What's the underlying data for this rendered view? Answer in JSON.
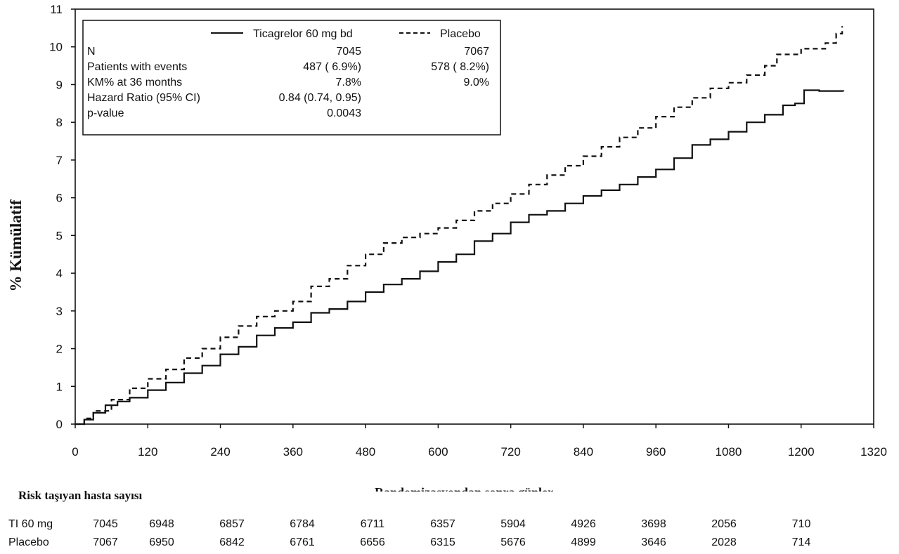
{
  "chart_data": {
    "type": "line",
    "ylabel": "% Kümülatif",
    "xlabel": "Randomizasyondan sonra günler",
    "xlim": [
      0,
      1320
    ],
    "ylim": [
      0,
      11
    ],
    "xticks": [
      0,
      120,
      240,
      360,
      480,
      600,
      720,
      840,
      960,
      1080,
      1200,
      1320
    ],
    "yticks": [
      0,
      1,
      2,
      3,
      4,
      5,
      6,
      7,
      8,
      9,
      10,
      11
    ],
    "grid": false,
    "legend_position": "top-left",
    "series": [
      {
        "name": "Ticagrelor 60 mg bd",
        "style": "solid",
        "color": "#111111",
        "points": [
          [
            0,
            0
          ],
          [
            15,
            0.12
          ],
          [
            30,
            0.3
          ],
          [
            50,
            0.5
          ],
          [
            70,
            0.6
          ],
          [
            90,
            0.7
          ],
          [
            120,
            0.9
          ],
          [
            150,
            1.1
          ],
          [
            180,
            1.35
          ],
          [
            210,
            1.55
          ],
          [
            240,
            1.85
          ],
          [
            270,
            2.05
          ],
          [
            300,
            2.35
          ],
          [
            330,
            2.55
          ],
          [
            360,
            2.7
          ],
          [
            390,
            2.95
          ],
          [
            420,
            3.05
          ],
          [
            450,
            3.25
          ],
          [
            480,
            3.5
          ],
          [
            510,
            3.7
          ],
          [
            540,
            3.85
          ],
          [
            570,
            4.05
          ],
          [
            600,
            4.3
          ],
          [
            630,
            4.5
          ],
          [
            660,
            4.85
          ],
          [
            690,
            5.05
          ],
          [
            720,
            5.35
          ],
          [
            750,
            5.55
          ],
          [
            780,
            5.65
          ],
          [
            810,
            5.85
          ],
          [
            840,
            6.05
          ],
          [
            870,
            6.2
          ],
          [
            900,
            6.35
          ],
          [
            930,
            6.55
          ],
          [
            960,
            6.75
          ],
          [
            990,
            7.05
          ],
          [
            1020,
            7.4
          ],
          [
            1050,
            7.55
          ],
          [
            1080,
            7.75
          ],
          [
            1110,
            8.0
          ],
          [
            1140,
            8.2
          ],
          [
            1170,
            8.45
          ],
          [
            1190,
            8.5
          ],
          [
            1205,
            8.85
          ],
          [
            1230,
            8.83
          ],
          [
            1270,
            8.82
          ]
        ]
      },
      {
        "name": "Placebo",
        "style": "dashed",
        "color": "#111111",
        "points": [
          [
            0,
            0
          ],
          [
            15,
            0.15
          ],
          [
            30,
            0.35
          ],
          [
            60,
            0.65
          ],
          [
            90,
            0.95
          ],
          [
            120,
            1.2
          ],
          [
            150,
            1.45
          ],
          [
            180,
            1.75
          ],
          [
            210,
            2.0
          ],
          [
            240,
            2.3
          ],
          [
            270,
            2.6
          ],
          [
            300,
            2.85
          ],
          [
            330,
            3.0
          ],
          [
            360,
            3.25
          ],
          [
            390,
            3.65
          ],
          [
            420,
            3.85
          ],
          [
            450,
            4.2
          ],
          [
            480,
            4.5
          ],
          [
            510,
            4.8
          ],
          [
            540,
            4.95
          ],
          [
            570,
            5.05
          ],
          [
            600,
            5.2
          ],
          [
            630,
            5.4
          ],
          [
            660,
            5.65
          ],
          [
            690,
            5.85
          ],
          [
            720,
            6.1
          ],
          [
            750,
            6.35
          ],
          [
            780,
            6.6
          ],
          [
            810,
            6.85
          ],
          [
            840,
            7.1
          ],
          [
            870,
            7.35
          ],
          [
            900,
            7.6
          ],
          [
            930,
            7.85
          ],
          [
            960,
            8.15
          ],
          [
            990,
            8.4
          ],
          [
            1020,
            8.65
          ],
          [
            1050,
            8.9
          ],
          [
            1080,
            9.05
          ],
          [
            1110,
            9.25
          ],
          [
            1140,
            9.5
          ],
          [
            1160,
            9.8
          ],
          [
            1200,
            9.95
          ],
          [
            1240,
            10.1
          ],
          [
            1258,
            10.35
          ],
          [
            1268,
            10.55
          ]
        ]
      }
    ]
  },
  "legend": {
    "series_labels": [
      "Ticagrelor 60 mg bd",
      "Placebo"
    ],
    "rows": [
      {
        "label": "N",
        "tica": "7045",
        "placebo": "7067"
      },
      {
        "label": "Patients with events",
        "tica": "487 ( 6.9%)",
        "placebo": "578 ( 8.2%)"
      },
      {
        "label": "KM% at 36 months",
        "tica": "7.8%",
        "placebo": "9.0%"
      },
      {
        "label": "Hazard Ratio (95% CI)",
        "tica": "0.84 (0.74, 0.95)",
        "placebo": ""
      },
      {
        "label": "p-value",
        "tica": "0.0043",
        "placebo": ""
      }
    ]
  },
  "risk_table": {
    "title": "Risk taşıyan hasta sayısı",
    "rows": [
      {
        "label": "TI 60 mg",
        "values": [
          "7045",
          "6948",
          "6857",
          "6784",
          "6711",
          "6357",
          "5904",
          "4926",
          "3698",
          "2056",
          "710"
        ]
      },
      {
        "label": "Placebo",
        "values": [
          "7067",
          "6950",
          "6842",
          "6761",
          "6656",
          "6315",
          "5676",
          "4899",
          "3646",
          "2028",
          "714"
        ]
      }
    ]
  }
}
